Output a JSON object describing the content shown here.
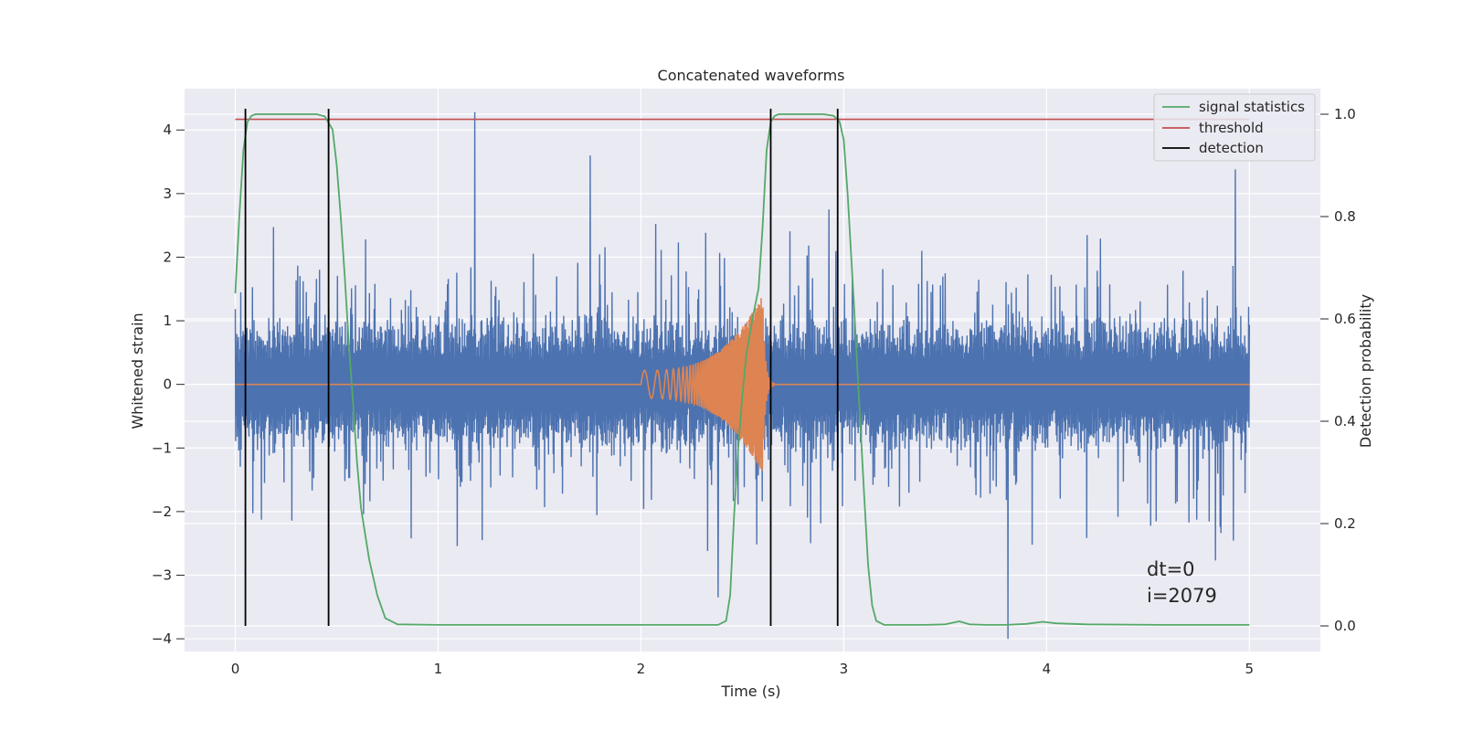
{
  "chart_data": {
    "type": "line",
    "title": "Concatenated waveforms",
    "xlabel": "Time (s)",
    "ylabel": "Whitened strain",
    "y2label": "Detection probability",
    "xlim": [
      -0.25,
      5.35
    ],
    "ylim": [
      -4.2,
      4.65
    ],
    "y2lim": [
      -0.05,
      1.05
    ],
    "xticks": [
      0,
      1,
      2,
      3,
      4,
      5
    ],
    "xtick_labels": [
      "0",
      "1",
      "2",
      "3",
      "4",
      "5"
    ],
    "yticks": [
      -4,
      -3,
      -2,
      -1,
      0,
      1,
      2,
      3,
      4
    ],
    "ytick_labels": [
      "−4",
      "−3",
      "−2",
      "−1",
      "0",
      "1",
      "2",
      "3",
      "4"
    ],
    "y2ticks": [
      0,
      0.2,
      0.4,
      0.6,
      0.8,
      1.0
    ],
    "y2tick_labels": [
      "0.0",
      "0.2",
      "0.4",
      "0.6",
      "0.8",
      "1.0"
    ],
    "grid": true,
    "legend_position": "top-right",
    "annotations": [
      "dt=0",
      "i=2079"
    ],
    "colors": {
      "background": "#eaeaf2",
      "grid": "#ffffff",
      "strain": "#4c72b0",
      "template": "#dd8452",
      "signal_statistics": "#55a868",
      "threshold": "#c44e52",
      "detection": "#000000"
    },
    "series": [
      {
        "name": "strain",
        "axis": "left",
        "kind": "noise",
        "x_range": [
          0,
          5
        ],
        "envelope_min": -4.0,
        "envelope_max": 4.3,
        "notable_spikes": [
          {
            "x": 1.18,
            "y": 4.28
          },
          {
            "x": 3.81,
            "y": -4.0
          },
          {
            "x": 4.93,
            "y": 3.38
          },
          {
            "x": 1.75,
            "y": 3.6
          },
          {
            "x": 2.38,
            "y": -3.35
          }
        ]
      },
      {
        "name": "template",
        "axis": "left",
        "kind": "chirp",
        "start_x": 2.0,
        "merger_x": 2.6,
        "start_amplitude": 0.22,
        "peak_amplitude": 1.4
      },
      {
        "name": "signal statistics",
        "axis": "right",
        "x": [
          0.0,
          0.02,
          0.04,
          0.06,
          0.08,
          0.1,
          0.2,
          0.3,
          0.4,
          0.44,
          0.48,
          0.5,
          0.52,
          0.54,
          0.56,
          0.58,
          0.6,
          0.62,
          0.66,
          0.7,
          0.74,
          0.8,
          1.0,
          2.0,
          2.38,
          2.42,
          2.44,
          2.46,
          2.48,
          2.5,
          2.52,
          2.55,
          2.58,
          2.6,
          2.62,
          2.64,
          2.66,
          2.68,
          2.72,
          2.8,
          2.9,
          2.95,
          2.98,
          3.0,
          3.02,
          3.05,
          3.08,
          3.1,
          3.12,
          3.14,
          3.16,
          3.2,
          3.4,
          3.5,
          3.57,
          3.62,
          3.7,
          3.8,
          3.9,
          3.98,
          4.05,
          4.2,
          4.6,
          5.0
        ],
        "values": [
          0.65,
          0.8,
          0.93,
          0.985,
          0.997,
          1.0,
          1.0,
          1.0,
          1.0,
          0.996,
          0.97,
          0.9,
          0.8,
          0.68,
          0.55,
          0.44,
          0.32,
          0.23,
          0.13,
          0.06,
          0.015,
          0.003,
          0.002,
          0.002,
          0.002,
          0.01,
          0.06,
          0.22,
          0.35,
          0.45,
          0.53,
          0.6,
          0.66,
          0.78,
          0.93,
          0.985,
          0.997,
          1.0,
          1.0,
          1.0,
          1.0,
          0.997,
          0.985,
          0.95,
          0.84,
          0.63,
          0.41,
          0.26,
          0.12,
          0.04,
          0.01,
          0.002,
          0.002,
          0.003,
          0.009,
          0.003,
          0.002,
          0.002,
          0.004,
          0.008,
          0.005,
          0.003,
          0.002,
          0.002
        ]
      },
      {
        "name": "threshold",
        "axis": "right",
        "x": [
          0,
          5
        ],
        "values": [
          0.99,
          0.99
        ]
      },
      {
        "name": "detection",
        "axis": "right",
        "kind": "vertical_lines",
        "x": [
          0.05,
          0.46,
          2.64,
          2.97
        ],
        "ymin": 0.0,
        "ymax": 1.0
      }
    ],
    "legend": [
      "signal statistics",
      "threshold",
      "detection"
    ]
  }
}
